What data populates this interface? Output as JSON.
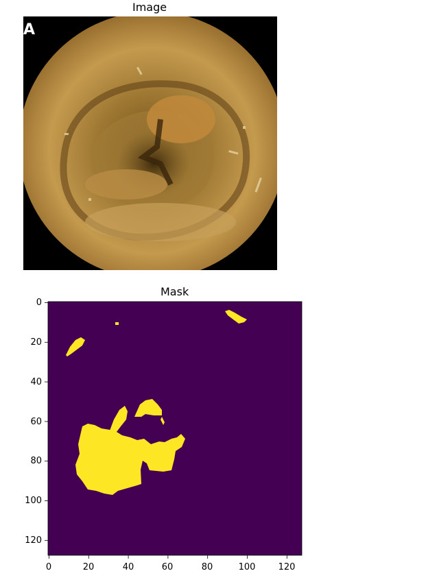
{
  "panels": {
    "image": {
      "title": "Image",
      "corner_text": "A"
    },
    "mask": {
      "title": "Mask",
      "x_ticks": [
        "0",
        "20",
        "40",
        "60",
        "80",
        "100",
        "120"
      ],
      "y_ticks": [
        "0",
        "20",
        "40",
        "60",
        "80",
        "100",
        "120"
      ]
    }
  },
  "colors": {
    "mask_background": "#440154",
    "mask_foreground": "#fde725",
    "photo_black": "#000000",
    "tissue_light": "#c79d52",
    "tissue_dark": "#5a3c16"
  }
}
